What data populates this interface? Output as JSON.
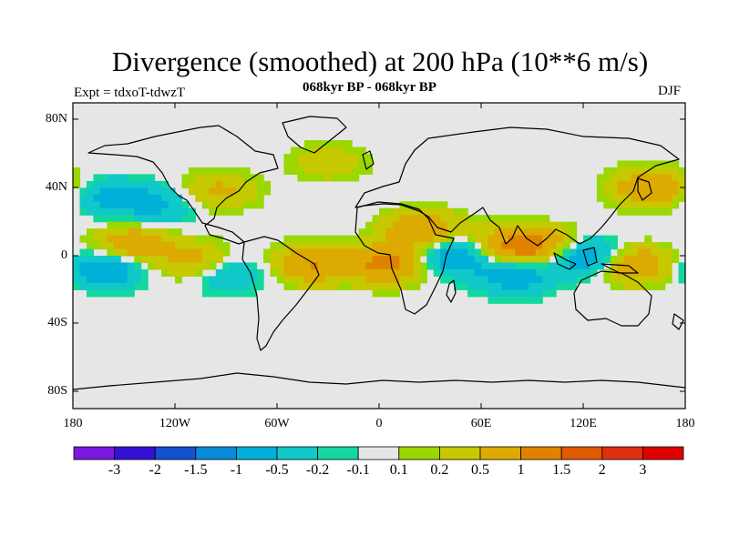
{
  "title": "Divergence (smoothed) at 200 hPa (10**6 m/s)",
  "subtitle_center": "068kyr BP - 068kyr BP",
  "subtitle_left": "Expt = tdxoT-tdwzT",
  "subtitle_right": "DJF",
  "lat_labels": [
    "80N",
    "40N",
    "0",
    "40S",
    "80S"
  ],
  "lon_labels": [
    "180",
    "120W",
    "60W",
    "0",
    "60E",
    "120E",
    "180"
  ],
  "colorbar": {
    "colors": [
      "#7a18e0",
      "#3510d8",
      "#1450d0",
      "#0a8ad8",
      "#00b0d8",
      "#10c8c8",
      "#12d8a0",
      "#e6e6e6",
      "#9ad800",
      "#c6c800",
      "#dcaa00",
      "#e08200",
      "#e05a00",
      "#e02e10",
      "#e00000"
    ],
    "labels": [
      "-3",
      "-2",
      "-1.5",
      "-1",
      "-0.5",
      "-0.2",
      "-0.1",
      "0.1",
      "0.2",
      "0.5",
      "1",
      "1.5",
      "2",
      "3"
    ]
  },
  "chart_data": {
    "type": "heatmap",
    "title": "Divergence (smoothed) at 200 hPa (10**6 m/s)",
    "season": "DJF",
    "x_range_deg": [
      -180,
      180
    ],
    "y_range_deg": [
      -90,
      90
    ],
    "xticks": [
      "180",
      "120W",
      "60W",
      "0",
      "60E",
      "120E",
      "180"
    ],
    "yticks": [
      "80N",
      "40N",
      "0",
      "40S",
      "80S"
    ],
    "levels": [
      -3,
      -2,
      -1.5,
      -1,
      -0.5,
      -0.2,
      -0.1,
      0.1,
      0.2,
      0.5,
      1,
      1.5,
      2,
      3
    ],
    "features": [
      {
        "lon": -145,
        "lat": 6,
        "value": 1.0
      },
      {
        "lon": -160,
        "lat": -7,
        "value": -1.0
      },
      {
        "lon": -105,
        "lat": -4,
        "value": 0.8
      },
      {
        "lon": -90,
        "lat": -10,
        "value": -0.7
      },
      {
        "lon": -130,
        "lat": 30,
        "value": -0.6
      },
      {
        "lon": -95,
        "lat": 38,
        "value": 0.6
      },
      {
        "lon": -40,
        "lat": -5,
        "value": 1.0
      },
      {
        "lon": 5,
        "lat": -5,
        "value": 1.2
      },
      {
        "lon": 25,
        "lat": 15,
        "value": 1.0
      },
      {
        "lon": 45,
        "lat": 0,
        "value": -1.0
      },
      {
        "lon": 75,
        "lat": 5,
        "value": 1.0
      },
      {
        "lon": 80,
        "lat": -12,
        "value": -0.8
      },
      {
        "lon": 100,
        "lat": 5,
        "value": 1.0
      },
      {
        "lon": 120,
        "lat": 0,
        "value": -1.2
      },
      {
        "lon": 150,
        "lat": -5,
        "value": 1.0
      },
      {
        "lon": -160,
        "lat": 35,
        "value": -0.6
      },
      {
        "lon": -30,
        "lat": 55,
        "value": 0.4
      },
      {
        "lon": 160,
        "lat": 40,
        "value": 1.0
      }
    ]
  }
}
